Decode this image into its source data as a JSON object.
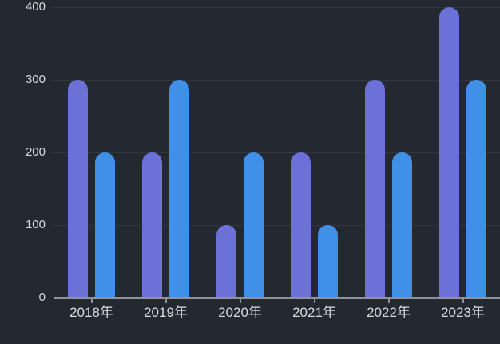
{
  "chart": {
    "background_color": "#242831",
    "axis_color": "#8e939b",
    "grid_color": "#313742",
    "label_color": "#d8dade"
  },
  "chart_data": {
    "type": "bar",
    "title": "",
    "xlabel": "",
    "ylabel": "",
    "categories": [
      "2018年",
      "2019年",
      "2020年",
      "2021年",
      "2022年",
      "2023年"
    ],
    "series": [
      {
        "name": "series-purple",
        "color": "#6b71d6",
        "values": [
          300,
          200,
          100,
          200,
          300,
          400
        ]
      },
      {
        "name": "series-blue",
        "color": "#4190e8",
        "values": [
          200,
          300,
          200,
          100,
          200,
          300
        ]
      }
    ],
    "ylim": [
      0,
      400
    ],
    "yticks": [
      0,
      100,
      200,
      300,
      400
    ],
    "ytick_labels": [
      "0",
      "100",
      "200",
      "300",
      "400"
    ],
    "grid": "horizontal",
    "legend_position": "none",
    "bar_style": "rounded-top"
  }
}
